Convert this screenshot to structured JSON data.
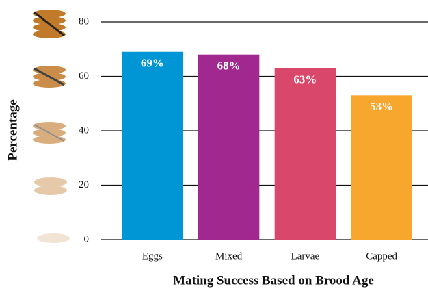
{
  "chart_data": {
    "type": "bar",
    "x_label": "Mating Success Based on Brood Age",
    "y_label": "Percentage",
    "categories": [
      "Eggs",
      "Mixed",
      "Larvae",
      "Capped"
    ],
    "values": [
      69,
      68,
      63,
      53
    ],
    "value_labels": [
      "69%",
      "68%",
      "63%",
      "53%"
    ],
    "colors": [
      "#0096d6",
      "#a0288f",
      "#d9476a",
      "#f8a72e"
    ],
    "ylim": [
      0,
      80
    ],
    "yticks": [
      0,
      20,
      40,
      60,
      80
    ],
    "grid": true
  }
}
